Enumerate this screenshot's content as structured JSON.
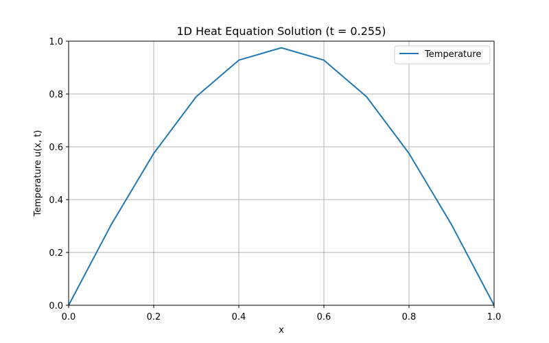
{
  "chart_data": {
    "type": "line",
    "title": "1D Heat Equation Solution (t = 0.255)",
    "xlabel": "x",
    "ylabel": "Temperature u(x, t)",
    "xlim": [
      0.0,
      1.0
    ],
    "ylim": [
      0.0,
      1.0
    ],
    "grid": true,
    "legend_position": "top-right",
    "x_ticks": [
      "0.0",
      "0.2",
      "0.4",
      "0.6",
      "0.8",
      "1.0"
    ],
    "y_ticks": [
      "0.0",
      "0.2",
      "0.4",
      "0.6",
      "0.8",
      "1.0"
    ],
    "series": [
      {
        "name": "Temperature",
        "color": "#1f77b4",
        "x": [
          0.0,
          0.1,
          0.2,
          0.3,
          0.4,
          0.5,
          0.6,
          0.7,
          0.8,
          0.9,
          1.0
        ],
        "y": [
          0.0,
          0.305,
          0.575,
          0.79,
          0.928,
          0.975,
          0.928,
          0.79,
          0.575,
          0.305,
          0.0
        ]
      }
    ]
  }
}
